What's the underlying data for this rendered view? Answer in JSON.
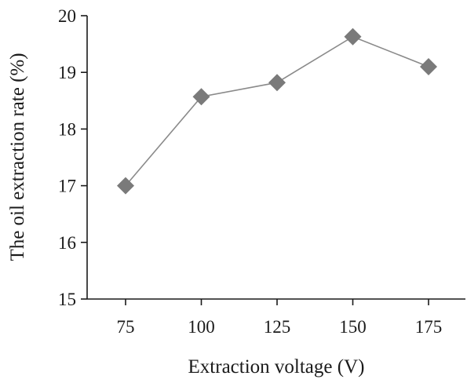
{
  "chart_data": {
    "type": "line",
    "title": "",
    "xlabel": "Extraction voltage (V)",
    "ylabel": "The oil extraction rate (%)",
    "categories": [
      "75",
      "100",
      "125",
      "150",
      "175"
    ],
    "x": [
      75,
      100,
      125,
      150,
      175
    ],
    "series": [
      {
        "values": [
          17.0,
          18.57,
          18.82,
          19.63,
          19.1
        ],
        "color": "#7a7a7a",
        "marker": "diamond"
      }
    ],
    "ylim": [
      15,
      20
    ],
    "yticks": [
      "15",
      "16",
      "17",
      "18",
      "19",
      "20"
    ],
    "grid": false,
    "legend": "none",
    "axis_color": "#1a1a1a",
    "line_color": "#8a8a8a"
  }
}
